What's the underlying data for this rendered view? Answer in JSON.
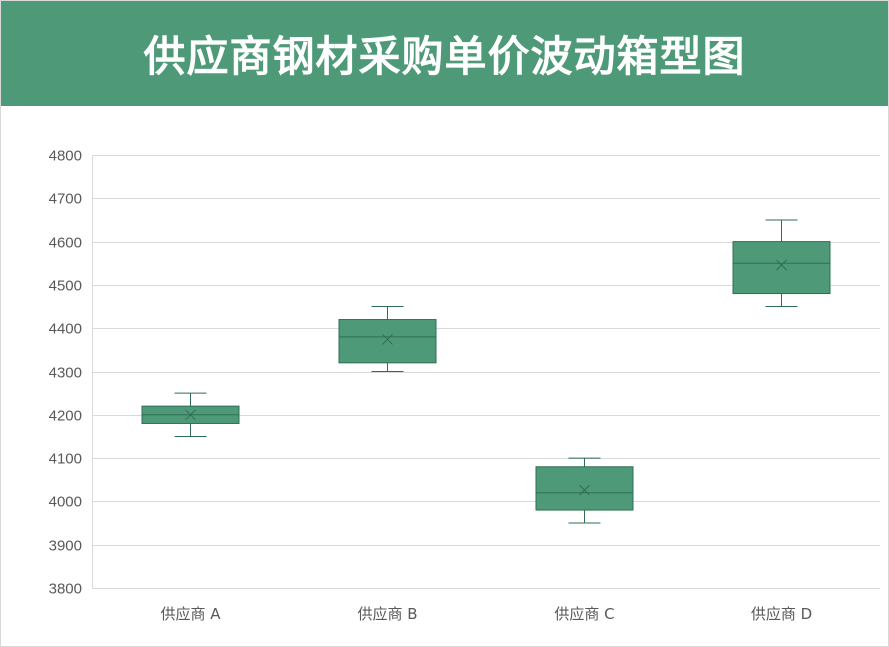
{
  "header": {
    "title": "供应商钢材采购单价波动箱型图"
  },
  "colors": {
    "header_bg": "#4e9a78",
    "box_fill": "#4e9a78",
    "box_stroke": "#2e6e52",
    "grid": "#d9d9d9",
    "axis_text": "#595959"
  },
  "chart_data": {
    "type": "boxplot",
    "title": "供应商钢材采购单价波动箱型图",
    "xlabel": "",
    "ylabel": "",
    "ylim": [
      3800,
      4800
    ],
    "yticks": [
      "3800",
      "3900",
      "4000",
      "4100",
      "4200",
      "4300",
      "4400",
      "4500",
      "4600",
      "4700",
      "4800"
    ],
    "grid": true,
    "categories": [
      "供应商 A",
      "供应商 B",
      "供应商 C",
      "供应商 D"
    ],
    "boxes": [
      {
        "min": 4150,
        "q1": 4180,
        "median": 4200,
        "q3": 4220,
        "max": 4250,
        "mean": 4200
      },
      {
        "min": 4300,
        "q1": 4320,
        "median": 4380,
        "q3": 4420,
        "max": 4450,
        "mean": 4374
      },
      {
        "min": 3950,
        "q1": 3980,
        "median": 4020,
        "q3": 4080,
        "max": 4100,
        "mean": 4026
      },
      {
        "min": 4450,
        "q1": 4480,
        "median": 4550,
        "q3": 4600,
        "max": 4650,
        "mean": 4546
      }
    ]
  }
}
